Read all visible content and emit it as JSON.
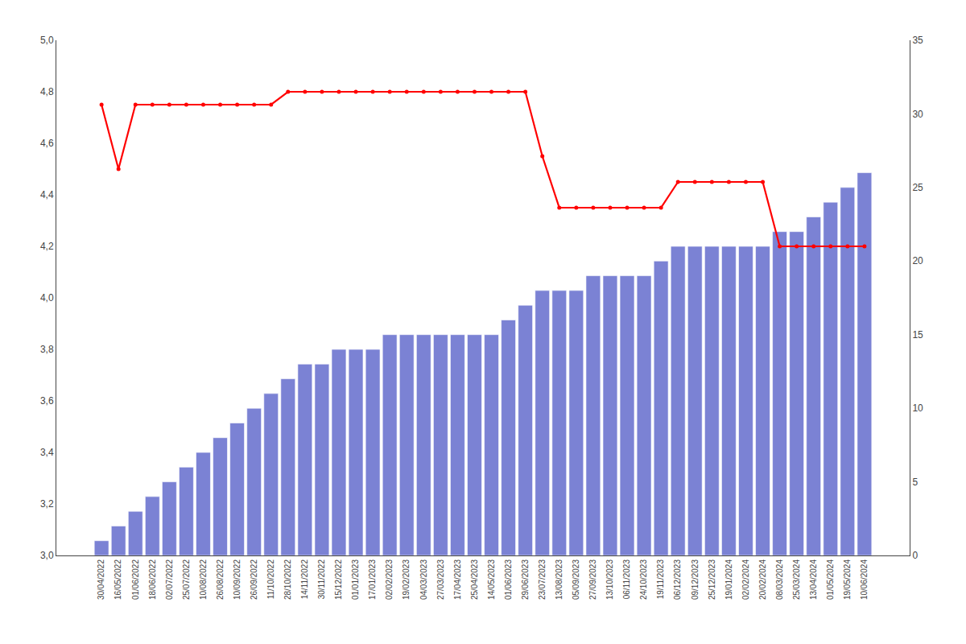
{
  "chart_data": {
    "type": "bar",
    "categories": [
      "30/04/2022",
      "16/05/2022",
      "01/06/2022",
      "18/06/2022",
      "02/07/2022",
      "25/07/2022",
      "10/08/2022",
      "26/08/2022",
      "10/09/2022",
      "26/09/2022",
      "11/10/2022",
      "28/10/2022",
      "14/11/2022",
      "30/11/2022",
      "15/12/2022",
      "01/01/2023",
      "17/01/2023",
      "02/02/2023",
      "19/02/2023",
      "04/03/2023",
      "27/03/2023",
      "17/04/2023",
      "25/04/2023",
      "14/05/2023",
      "01/06/2023",
      "29/06/2023",
      "23/07/2023",
      "13/08/2023",
      "05/09/2023",
      "27/09/2023",
      "13/10/2023",
      "06/11/2023",
      "24/10/2023",
      "19/11/2023",
      "06/12/2023",
      "09/12/2023",
      "25/12/2023",
      "19/01/2024",
      "02/02/2024",
      "20/02/2024",
      "08/03/2024",
      "25/03/2024",
      "13/04/2024",
      "01/05/2024",
      "19/05/2024",
      "10/06/2024"
    ],
    "series": [
      {
        "type": "bar",
        "axis": "y2",
        "color": "#7b82d4",
        "values": [
          1,
          2,
          3,
          4,
          5,
          6,
          7,
          8,
          9,
          10,
          11,
          12,
          13,
          13,
          14,
          14,
          14,
          15,
          15,
          15,
          15,
          15,
          15,
          15,
          16,
          17,
          18,
          18,
          18,
          19,
          19,
          19,
          19,
          20,
          21,
          21,
          21,
          21,
          21,
          21,
          22,
          22,
          23,
          24,
          25,
          26
        ]
      },
      {
        "type": "line",
        "color": "#ff0000",
        "marker": "circle",
        "values": [
          4.75,
          4.5,
          4.75,
          4.75,
          4.75,
          4.75,
          4.75,
          4.75,
          4.75,
          4.75,
          4.75,
          4.8,
          4.8,
          4.8,
          4.8,
          4.8,
          4.8,
          4.8,
          4.8,
          4.8,
          4.8,
          4.8,
          4.8,
          4.8,
          4.8,
          4.8,
          4.55,
          4.35,
          4.35,
          4.35,
          4.35,
          4.35,
          4.35,
          4.35,
          4.45,
          4.45,
          4.45,
          4.45,
          4.45,
          4.45,
          4.2,
          4.2,
          4.2,
          4.2,
          4.2,
          4.2
        ]
      }
    ],
    "ylim": [
      3.0,
      5.0
    ],
    "yticks": [
      {
        "value": 3.0,
        "label": "3,0"
      },
      {
        "value": 3.2,
        "label": "3,2"
      },
      {
        "value": 3.4,
        "label": "3,4"
      },
      {
        "value": 3.6,
        "label": "3,6"
      },
      {
        "value": 3.8,
        "label": "3,8"
      },
      {
        "value": 4.0,
        "label": "4,0"
      },
      {
        "value": 4.2,
        "label": "4,2"
      },
      {
        "value": 4.4,
        "label": "4,4"
      },
      {
        "value": 4.6,
        "label": "4,6"
      },
      {
        "value": 4.8,
        "label": "4,8"
      },
      {
        "value": 5.0,
        "label": "5,0"
      }
    ],
    "y2lim": [
      0,
      35
    ],
    "y2ticks": [
      0,
      5,
      10,
      15,
      20,
      25,
      30,
      35
    ],
    "grid": false
  }
}
